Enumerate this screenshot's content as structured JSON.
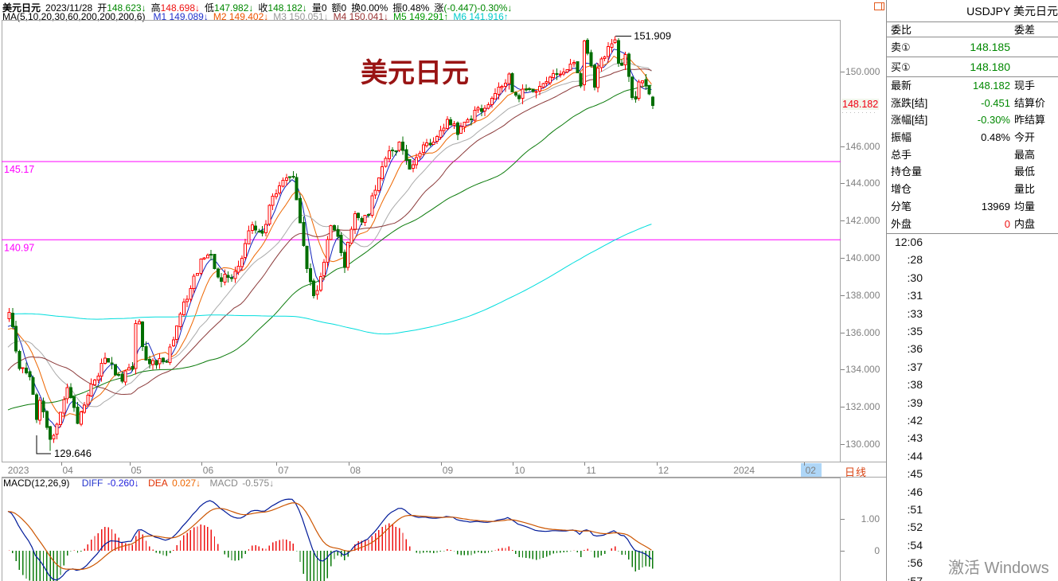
{
  "header": {
    "symbol": "美元日元",
    "date": "2023/11/28",
    "fields": [
      {
        "label": "开",
        "value": "148.623↓",
        "color": "#008800"
      },
      {
        "label": "高",
        "value": "148.698↓",
        "color": "#ee1111"
      },
      {
        "label": "低",
        "value": "147.982↓",
        "color": "#008800"
      },
      {
        "label": "收",
        "value": "148.182↓",
        "color": "#008800"
      },
      {
        "label": "量",
        "value": "0",
        "color": "#000000"
      },
      {
        "label": "额",
        "value": "0",
        "color": "#000000"
      },
      {
        "label": "换",
        "value": "0.00%",
        "color": "#000000"
      },
      {
        "label": "振",
        "value": "0.48%",
        "color": "#000000"
      },
      {
        "label": "涨",
        "value": "(-0.447)-0.30%↓",
        "color": "#008800"
      }
    ],
    "ma_label": "MA(5,10,20,30,60,200,200,200,6)",
    "ma_values": [
      {
        "name": "M1",
        "value": "149.089↓",
        "color": "#2233cc"
      },
      {
        "name": "M2",
        "value": "149.402↓",
        "color": "#ee5500"
      },
      {
        "name": "M3",
        "value": "150.051↓",
        "color": "#999999"
      },
      {
        "name": "M4",
        "value": "150.041↓",
        "color": "#993333"
      },
      {
        "name": "M5",
        "value": "149.291↑",
        "color": "#009900"
      },
      {
        "name": "M6",
        "value": "141.916↑",
        "color": "#00cccc"
      }
    ]
  },
  "chart": {
    "watermark": "美元日元",
    "high_label": "151.909",
    "low_label": "129.646",
    "current_price_label": "148.182",
    "period_label": "日线",
    "y_axis": [
      {
        "t": "150.000",
        "p": 150
      },
      {
        "t": "146.000",
        "p": 146
      },
      {
        "t": "144.000",
        "p": 144
      },
      {
        "t": "142.000",
        "p": 142
      },
      {
        "t": "140.000",
        "p": 140
      },
      {
        "t": "138.000",
        "p": 138
      },
      {
        "t": "136.000",
        "p": 136
      },
      {
        "t": "134.000",
        "p": 134
      },
      {
        "t": "132.000",
        "p": 132
      },
      {
        "t": "130.000",
        "p": 130
      }
    ],
    "x_axis": [
      {
        "label": "2023",
        "d": -1,
        "tick": false,
        "hl": false
      },
      {
        "label": "04",
        "d": 15,
        "tick": true,
        "hl": false
      },
      {
        "label": "05",
        "d": 35,
        "tick": true,
        "hl": false
      },
      {
        "label": "06",
        "d": 56,
        "tick": true,
        "hl": false
      },
      {
        "label": "07",
        "d": 78,
        "tick": true,
        "hl": false
      },
      {
        "label": "08",
        "d": 99,
        "tick": true,
        "hl": false
      },
      {
        "label": "09",
        "d": 126,
        "tick": true,
        "hl": false
      },
      {
        "label": "10",
        "d": 147,
        "tick": true,
        "hl": false
      },
      {
        "label": "11",
        "d": 168,
        "tick": true,
        "hl": false
      },
      {
        "label": "12",
        "d": 189,
        "tick": true,
        "hl": false
      },
      {
        "label": "2024",
        "d": 211,
        "tick": false,
        "hl": false
      },
      {
        "label": "02",
        "d": 232,
        "tick": true,
        "hl": true
      }
    ]
  },
  "chart_data": {
    "type": "candlestick",
    "symbol": "USDJPY",
    "timeframe": "daily",
    "title": "美元日元",
    "visible_high": 151.909,
    "visible_low": 129.646,
    "horizontal_levels": [
      145.17,
      140.97
    ],
    "level_color": "#ff00ff",
    "last_candle": {
      "open": 148.623,
      "high": 148.698,
      "low": 147.982,
      "close": 148.182
    },
    "ma_periods": [
      5,
      10,
      20,
      30,
      60,
      200
    ],
    "ma_colors": [
      "#1122bb",
      "#ee6600",
      "#aaaaaa",
      "#8b3a3a",
      "#0a7a0a",
      "#00dddd"
    ],
    "candle_up_color": "#ff0000",
    "candle_down_color": "#006e00",
    "display_from_day": 0,
    "price_path": [
      [
        -210,
        129.0
      ],
      [
        -195,
        133.5
      ],
      [
        -180,
        136.2
      ],
      [
        -170,
        132.8
      ],
      [
        -160,
        133.2
      ],
      [
        -150,
        135.5
      ],
      [
        -140,
        138.7
      ],
      [
        -130,
        141.5
      ],
      [
        -120,
        144.5
      ],
      [
        -110,
        147.5
      ],
      [
        -100,
        149.5
      ],
      [
        -96,
        151.5
      ],
      [
        -90,
        146.8
      ],
      [
        -85,
        139.3
      ],
      [
        -78,
        138.5
      ],
      [
        -70,
        137.0
      ],
      [
        -60,
        131.9
      ],
      [
        -52,
        131.0
      ],
      [
        -45,
        128.9
      ],
      [
        -38,
        127.9
      ],
      [
        -30,
        130.0
      ],
      [
        -25,
        131.4
      ],
      [
        -18,
        133.0
      ],
      [
        -12,
        135.2
      ],
      [
        -6,
        136.2
      ],
      [
        -2,
        135.9
      ],
      [
        0,
        137.3
      ],
      [
        3,
        134.2
      ],
      [
        6,
        133.8
      ],
      [
        8,
        131.4
      ],
      [
        9,
        132.5
      ],
      [
        11,
        131.0
      ],
      [
        12,
        130.3
      ],
      [
        14,
        130.9
      ],
      [
        17,
        132.8
      ],
      [
        20,
        131.3
      ],
      [
        24,
        133.3
      ],
      [
        28,
        134.4
      ],
      [
        33,
        133.6
      ],
      [
        36,
        134.0
      ],
      [
        37,
        136.3
      ],
      [
        38,
        136.5
      ],
      [
        40,
        134.4
      ],
      [
        46,
        134.4
      ],
      [
        49,
        136.4
      ],
      [
        54,
        139.0
      ],
      [
        56,
        139.7
      ],
      [
        59,
        140.4
      ],
      [
        61,
        138.8
      ],
      [
        65,
        139.0
      ],
      [
        68,
        140.0
      ],
      [
        71,
        141.8
      ],
      [
        74,
        141.4
      ],
      [
        77,
        143.2
      ],
      [
        81,
        144.3
      ],
      [
        83,
        144.5
      ],
      [
        85,
        142.1
      ],
      [
        87,
        139.3
      ],
      [
        89,
        138.2
      ],
      [
        91,
        138.8
      ],
      [
        94,
        141.8
      ],
      [
        96,
        141.2
      ],
      [
        98,
        139.4
      ],
      [
        99,
        141.0
      ],
      [
        101,
        142.3
      ],
      [
        103,
        141.7
      ],
      [
        105,
        142.5
      ],
      [
        109,
        144.9
      ],
      [
        111,
        145.5
      ],
      [
        114,
        146.2
      ],
      [
        117,
        144.8
      ],
      [
        121,
        146.1
      ],
      [
        124,
        146.2
      ],
      [
        128,
        147.5
      ],
      [
        131,
        146.7
      ],
      [
        136,
        147.8
      ],
      [
        140,
        148.4
      ],
      [
        145,
        149.4
      ],
      [
        146,
        149.8
      ],
      [
        147,
        149.0
      ],
      [
        149,
        148.5
      ],
      [
        151,
        149.3
      ],
      [
        153,
        148.7
      ],
      [
        156,
        149.6
      ],
      [
        161,
        149.9
      ],
      [
        165,
        150.4
      ],
      [
        167,
        149.1
      ],
      [
        168,
        151.7
      ],
      [
        169,
        150.9
      ],
      [
        170,
        150.4
      ],
      [
        171,
        149.4
      ],
      [
        172,
        150.1
      ],
      [
        176,
        151.5
      ],
      [
        177,
        151.72
      ],
      [
        178,
        150.4
      ],
      [
        180,
        150.7
      ],
      [
        181,
        149.6
      ],
      [
        182,
        148.4
      ],
      [
        183,
        148.45
      ],
      [
        184,
        149.4
      ],
      [
        186,
        149.4
      ],
      [
        187,
        148.8
      ],
      [
        188,
        148.182
      ]
    ],
    "forced": {
      "12": {
        "low": 129.646
      },
      "177": {
        "high": 151.909
      },
      "188": {
        "open": 148.623,
        "high": 148.698,
        "low": 147.982,
        "close": 148.182
      }
    }
  },
  "macd": {
    "title": "MACD(12,26,9)",
    "diff_label": "DIFF",
    "diff_value": "-0.260↓",
    "dea_label": "DEA",
    "dea_value": "0.027↓",
    "macd_label": "MACD",
    "macd_value": "-0.575↓",
    "scale": [
      {
        "t": "1.00",
        "v": 1.0
      },
      {
        "t": "0",
        "v": 0
      }
    ],
    "diff_color": "#001a99",
    "dea_color": "#cc5500"
  },
  "sidebar": {
    "title": "USDJPY 美元日元",
    "weibi_label": "委比",
    "weicha_label": "委差",
    "ask": {
      "label": "卖①",
      "value": "148.185"
    },
    "bid": {
      "label": "买①",
      "value": "148.180"
    },
    "rows": [
      {
        "l": "最新",
        "lv": "148.182",
        "lc": "green",
        "r": "现手",
        "rv": ""
      },
      {
        "l": "涨跌[结]",
        "lv": "-0.451",
        "lc": "green",
        "r": "结算价",
        "rv": ""
      },
      {
        "l": "涨幅[结]",
        "lv": "-0.30%",
        "lc": "green",
        "r": "昨结算",
        "rv": ""
      },
      {
        "l": "振幅",
        "lv": "0.48%",
        "lc": "blk",
        "r": "今开",
        "rv": ""
      },
      {
        "l": "总手",
        "lv": "",
        "lc": "blk",
        "r": "最高",
        "rv": ""
      },
      {
        "l": "持仓量",
        "lv": "",
        "lc": "blk",
        "r": "最低",
        "rv": ""
      },
      {
        "l": "增仓",
        "lv": "",
        "lc": "blk",
        "r": "量比",
        "rv": ""
      },
      {
        "l": "分笔",
        "lv": "13969",
        "lc": "blk",
        "r": "均量",
        "rv": ""
      },
      {
        "l": "外盘",
        "lv": "0",
        "lc": "red",
        "r": "内盘",
        "rv": ""
      }
    ],
    "times": [
      "12:06",
      ":28",
      ":30",
      ":31",
      ":33",
      ":35",
      ":36",
      ":37",
      ":38",
      ":39",
      ":42",
      ":43",
      ":44",
      ":45",
      ":46",
      ":51",
      ":52",
      ":54",
      ":56",
      ":57"
    ]
  },
  "os_watermark": "激活 Windows"
}
